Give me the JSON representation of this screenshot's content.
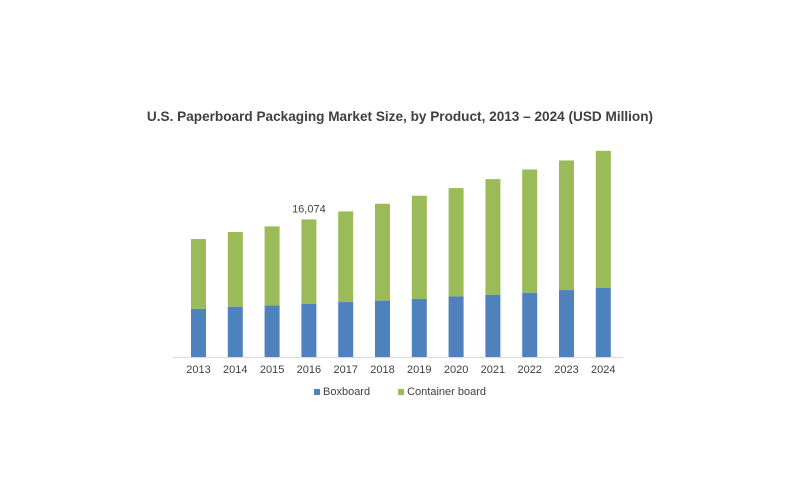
{
  "chart_data": {
    "type": "bar",
    "stacked": true,
    "title": "U.S. Paperboard Packaging Market Size, by Product, 2013 – 2024 (USD Million)",
    "xlabel": "",
    "ylabel": "",
    "ylim": [
      0,
      25000
    ],
    "grid": false,
    "legend_position": "bottom",
    "categories": [
      "2013",
      "2014",
      "2015",
      "2016",
      "2017",
      "2018",
      "2019",
      "2020",
      "2021",
      "2022",
      "2023",
      "2024"
    ],
    "series": [
      {
        "name": "Boxboard",
        "color": "#4f81bd",
        "values": [
          5640,
          5880,
          6030,
          6230,
          6420,
          6580,
          6810,
          7080,
          7280,
          7510,
          7820,
          8060
        ]
      },
      {
        "name": "Container board",
        "color": "#9bbb59",
        "values": [
          8140,
          8720,
          9230,
          9844,
          10590,
          11320,
          12030,
          12650,
          13500,
          14400,
          15140,
          16030
        ]
      }
    ],
    "annotations": [
      {
        "category": "2016",
        "text": "16,074"
      }
    ]
  }
}
